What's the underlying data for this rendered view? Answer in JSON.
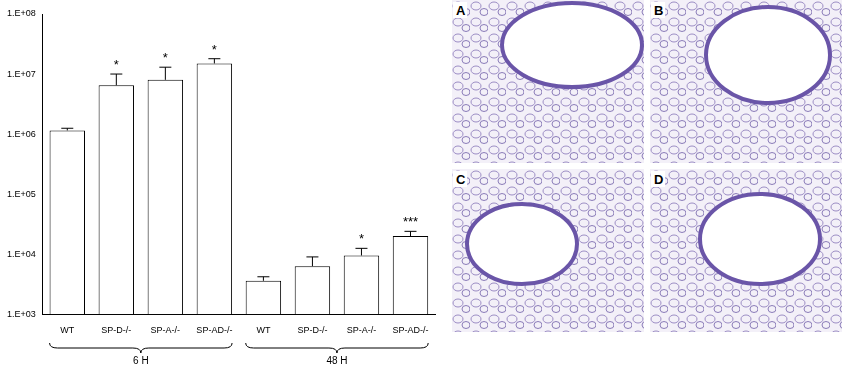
{
  "chart_data": {
    "type": "bar",
    "categories": [
      "WT",
      "SP-D-/-",
      "SP-A-/-",
      "SP-AD-/-",
      "WT",
      "SP-D-/-",
      "SP-A-/-",
      "SP-AD-/-"
    ],
    "values": [
      1150000,
      6500000,
      8000000,
      15000000,
      3600,
      6300,
      9500,
      20000
    ],
    "error": [
      100000,
      3500000,
      5000000,
      3000000,
      600,
      2700,
      3000,
      4000
    ],
    "annotations": [
      null,
      "*",
      "*",
      "*",
      null,
      null,
      "*",
      "***"
    ],
    "groups": [
      {
        "label": "6 H",
        "span": 4
      },
      {
        "label": "48 H",
        "span": 4
      }
    ],
    "color": "#ffffff",
    "log": "y",
    "grid": false,
    "ylim": [
      1000,
      100000000
    ],
    "yticks": [
      {
        "value": 1000,
        "label": "1.E+03"
      },
      {
        "value": 10000,
        "label": "1.E+04"
      },
      {
        "value": 100000,
        "label": "1.E+05"
      },
      {
        "value": 1000000,
        "label": "1.E+06"
      },
      {
        "value": 10000000,
        "label": "1.E+07"
      },
      {
        "value": 100000000,
        "label": "1.E+08"
      }
    ]
  },
  "panels": [
    {
      "label": "A"
    },
    {
      "label": "B"
    },
    {
      "label": "C"
    },
    {
      "label": "D"
    }
  ]
}
